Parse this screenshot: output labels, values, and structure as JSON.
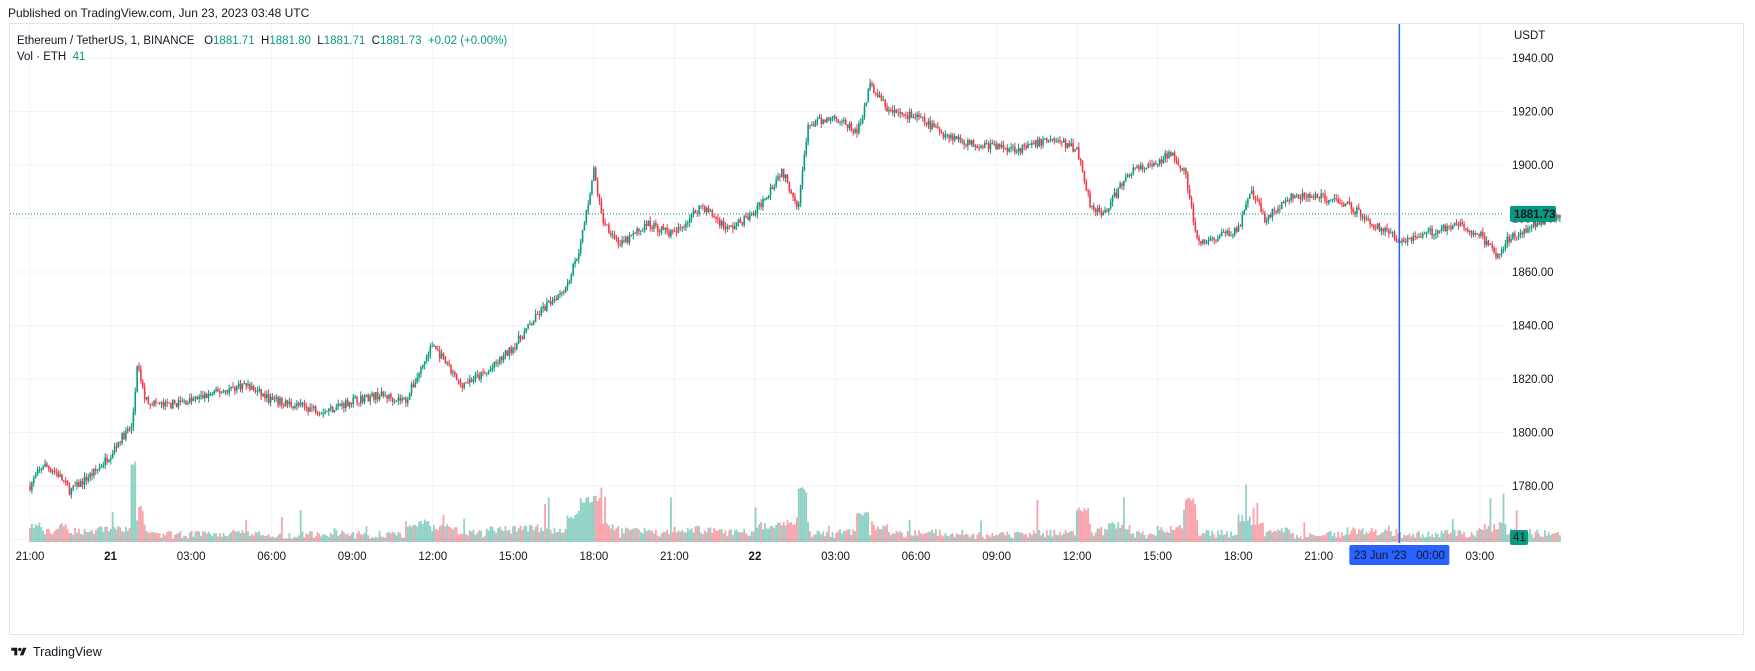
{
  "published": "Published on TradingView.com, Jun 23, 2023 03:48 UTC",
  "legend": {
    "symbol": "Ethereum / TetherUS, 1, BINANCE",
    "o_label": "O",
    "o_value": "1881.71",
    "h_label": "H",
    "h_value": "1881.80",
    "l_label": "L",
    "l_value": "1881.71",
    "c_label": "C",
    "c_value": "1881.73",
    "change": "+0.02 (+0.00%)",
    "vol_label": "Vol · ETH",
    "vol_value": "41"
  },
  "price_axis": {
    "currency": "USDT",
    "current_price": "1881.73",
    "current_volume": "41"
  },
  "time_axis": {
    "crosshair_label": "23 Jun '23   00:00"
  },
  "footer": {
    "brand": "TradingView"
  },
  "colors": {
    "up": "#089981",
    "down": "#f23645",
    "crosshair": "#2962ff",
    "grid": "#f0f3fa",
    "price_line": "#089981"
  },
  "chart_data": {
    "type": "candlestick",
    "symbol": "ETHUSDT",
    "interval": "1",
    "y_ticks": [
      1780,
      1800,
      1820,
      1840,
      1860,
      1880,
      1900,
      1920,
      1940
    ],
    "y_tick_labels": [
      "1780.00",
      "1800.00",
      "1820.00",
      "1840.00",
      "1860.00",
      "1880.00",
      "1900.00",
      "1920.00",
      "1940.00"
    ],
    "ylim": [
      1765,
      1945
    ],
    "x_ticks": [
      "21:00",
      "21",
      "03:00",
      "06:00",
      "09:00",
      "12:00",
      "15:00",
      "18:00",
      "21:00",
      "22",
      "03:00",
      "06:00",
      "09:00",
      "12:00",
      "15:00",
      "18:00",
      "21:00",
      "03:00"
    ],
    "x_tick_hours": [
      0,
      3,
      6,
      9,
      12,
      15,
      18,
      21,
      24,
      27,
      30,
      33,
      36,
      39,
      42,
      45,
      48,
      54
    ],
    "x_tick_bold": [
      false,
      true,
      false,
      false,
      false,
      false,
      false,
      false,
      false,
      true,
      false,
      false,
      false,
      false,
      false,
      false,
      false,
      false
    ],
    "crosshair_hour": 51,
    "approx_close_path": [
      [
        0,
        1780
      ],
      [
        0.5,
        1788
      ],
      [
        1.0,
        1785
      ],
      [
        1.5,
        1778
      ],
      [
        2.0,
        1782
      ],
      [
        2.5,
        1786
      ],
      [
        3.0,
        1792
      ],
      [
        3.4,
        1798
      ],
      [
        3.8,
        1802
      ],
      [
        4.0,
        1825
      ],
      [
        4.3,
        1812
      ],
      [
        5,
        1810
      ],
      [
        6,
        1812
      ],
      [
        7,
        1815
      ],
      [
        8,
        1818
      ],
      [
        9,
        1812
      ],
      [
        10,
        1810
      ],
      [
        11,
        1808
      ],
      [
        12,
        1812
      ],
      [
        13,
        1814
      ],
      [
        14,
        1812
      ],
      [
        15,
        1833
      ],
      [
        16,
        1818
      ],
      [
        17,
        1822
      ],
      [
        18,
        1832
      ],
      [
        19,
        1845
      ],
      [
        20,
        1855
      ],
      [
        20.5,
        1870
      ],
      [
        21,
        1898
      ],
      [
        21.3,
        1880
      ],
      [
        22,
        1870
      ],
      [
        23,
        1878
      ],
      [
        24,
        1874
      ],
      [
        25,
        1885
      ],
      [
        26,
        1876
      ],
      [
        27,
        1882
      ],
      [
        28,
        1898
      ],
      [
        28.6,
        1885
      ],
      [
        29,
        1915
      ],
      [
        30,
        1918
      ],
      [
        30.8,
        1912
      ],
      [
        31.3,
        1930
      ],
      [
        32,
        1920
      ],
      [
        33,
        1918
      ],
      [
        34,
        1912
      ],
      [
        35,
        1908
      ],
      [
        36,
        1907
      ],
      [
        37,
        1906
      ],
      [
        38,
        1910
      ],
      [
        39,
        1906
      ],
      [
        39.5,
        1885
      ],
      [
        40,
        1882
      ],
      [
        41,
        1898
      ],
      [
        42,
        1900
      ],
      [
        42.5,
        1905
      ],
      [
        43,
        1898
      ],
      [
        43.5,
        1870
      ],
      [
        44,
        1872
      ],
      [
        45,
        1876
      ],
      [
        45.5,
        1890
      ],
      [
        46,
        1880
      ],
      [
        47,
        1888
      ],
      [
        48,
        1888
      ],
      [
        49,
        1886
      ],
      [
        50,
        1878
      ],
      [
        51,
        1872
      ],
      [
        52,
        1874
      ],
      [
        53,
        1878
      ],
      [
        54,
        1874
      ],
      [
        54.7,
        1865
      ],
      [
        55,
        1872
      ],
      [
        56,
        1878
      ],
      [
        57,
        1881.73
      ]
    ]
  }
}
